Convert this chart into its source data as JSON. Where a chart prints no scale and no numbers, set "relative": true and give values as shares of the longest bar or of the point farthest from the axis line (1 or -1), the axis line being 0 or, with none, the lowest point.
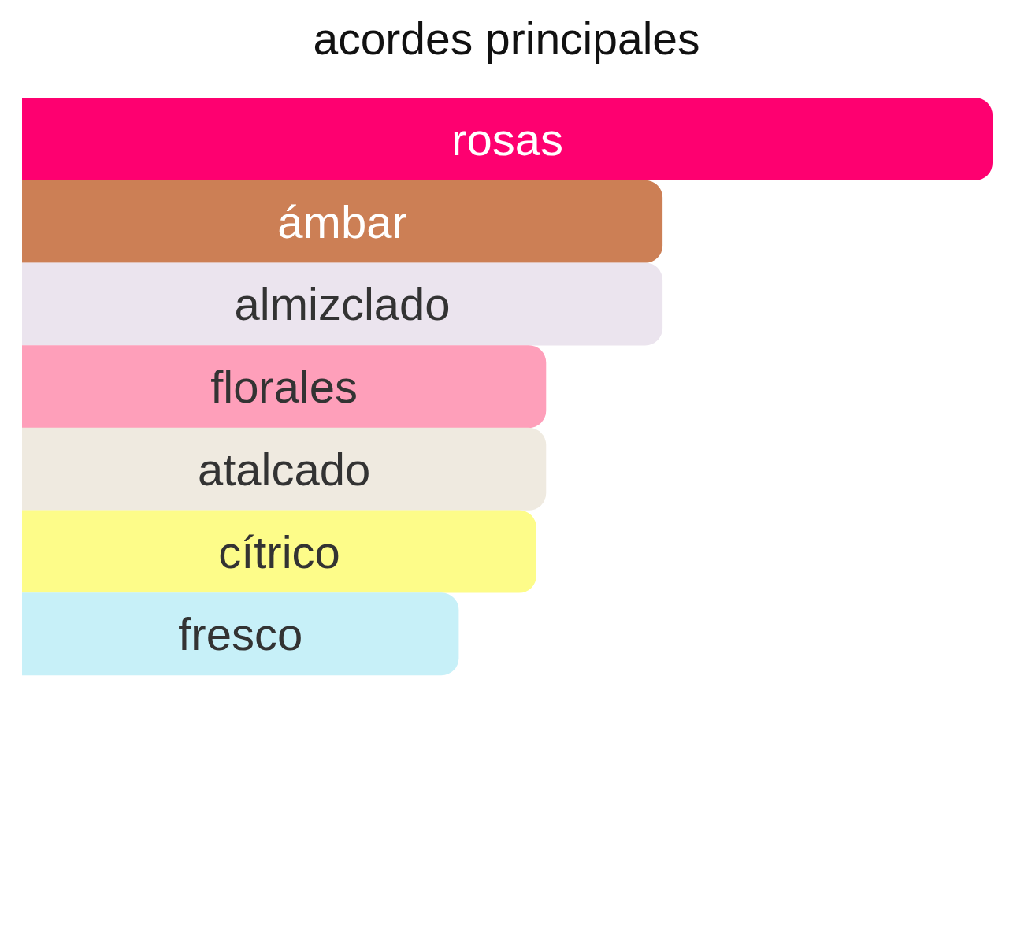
{
  "chart_data": {
    "type": "bar",
    "orientation": "horizontal",
    "relative": true,
    "title": "acordes principales",
    "categories": [
      "rosas",
      "ámbar",
      "almizclado",
      "florales",
      "atalcado",
      "cítrico",
      "fresco"
    ],
    "values": [
      1,
      0.66,
      0.66,
      0.54,
      0.54,
      0.53,
      0.45
    ],
    "colors": [
      "#fe0070",
      "#cc7f55",
      "#ebe4ee",
      "#fe9fba",
      "#efeae0",
      "#fdfc89",
      "#c7f0f8"
    ]
  }
}
